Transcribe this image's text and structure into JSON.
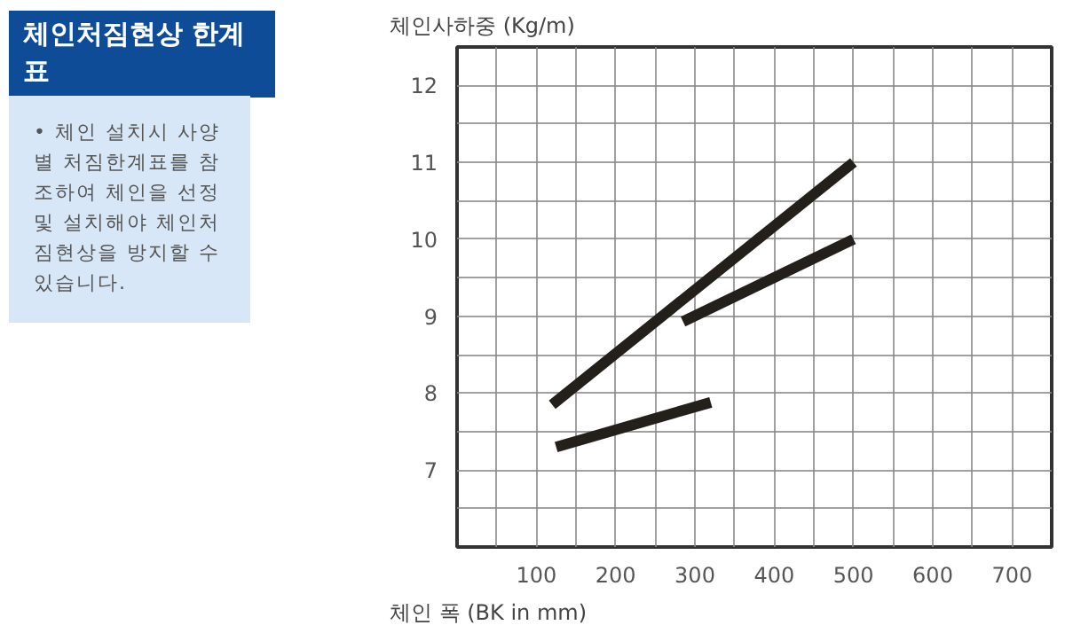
{
  "chart_data": {
    "type": "line",
    "title": "체인처짐현상 한계표",
    "annotations": [
      "• 체인 설치시 사양별 처짐한계표를 참조하여 체인을 선정및 설치해야 체인처짐현상을 방지할 수 있습니다."
    ],
    "ylabel": "체인사하중 (Kg/m)",
    "xlabel": "체인 폭 (BK in mm)",
    "series": [
      {
        "color": "#231f1a",
        "x": [
          120,
          500
        ],
        "values": [
          7.85,
          11
        ]
      },
      {
        "color": "#231f1a",
        "x": [
          285,
          500
        ],
        "values": [
          8.93,
          10
        ]
      },
      {
        "color": "#231f1a",
        "x": [
          125,
          320
        ],
        "values": [
          7.3,
          7.88
        ]
      }
    ],
    "xlim": [
      0,
      750
    ],
    "ylim": [
      6,
      12.5
    ],
    "xticks": [
      {
        "value": 50,
        "label": null
      },
      100,
      {
        "value": 150,
        "label": null
      },
      200,
      {
        "value": 250,
        "label": null
      },
      300,
      {
        "value": 350,
        "label": null
      },
      400,
      {
        "value": 450,
        "label": null
      },
      500,
      {
        "value": 550,
        "label": null
      },
      600,
      {
        "value": 650,
        "label": null
      },
      700
    ],
    "yticks": [
      {
        "value": 6.5,
        "label": null
      },
      7,
      {
        "value": 7.5,
        "label": null
      },
      8,
      {
        "value": 8.5,
        "label": null
      },
      9,
      {
        "value": 9.5,
        "label": null
      },
      10,
      {
        "value": 10.5,
        "label": null
      },
      11,
      {
        "value": 11.5,
        "label": null
      },
      12
    ],
    "grid": true,
    "marker": "none",
    "line_style": "solid"
  }
}
